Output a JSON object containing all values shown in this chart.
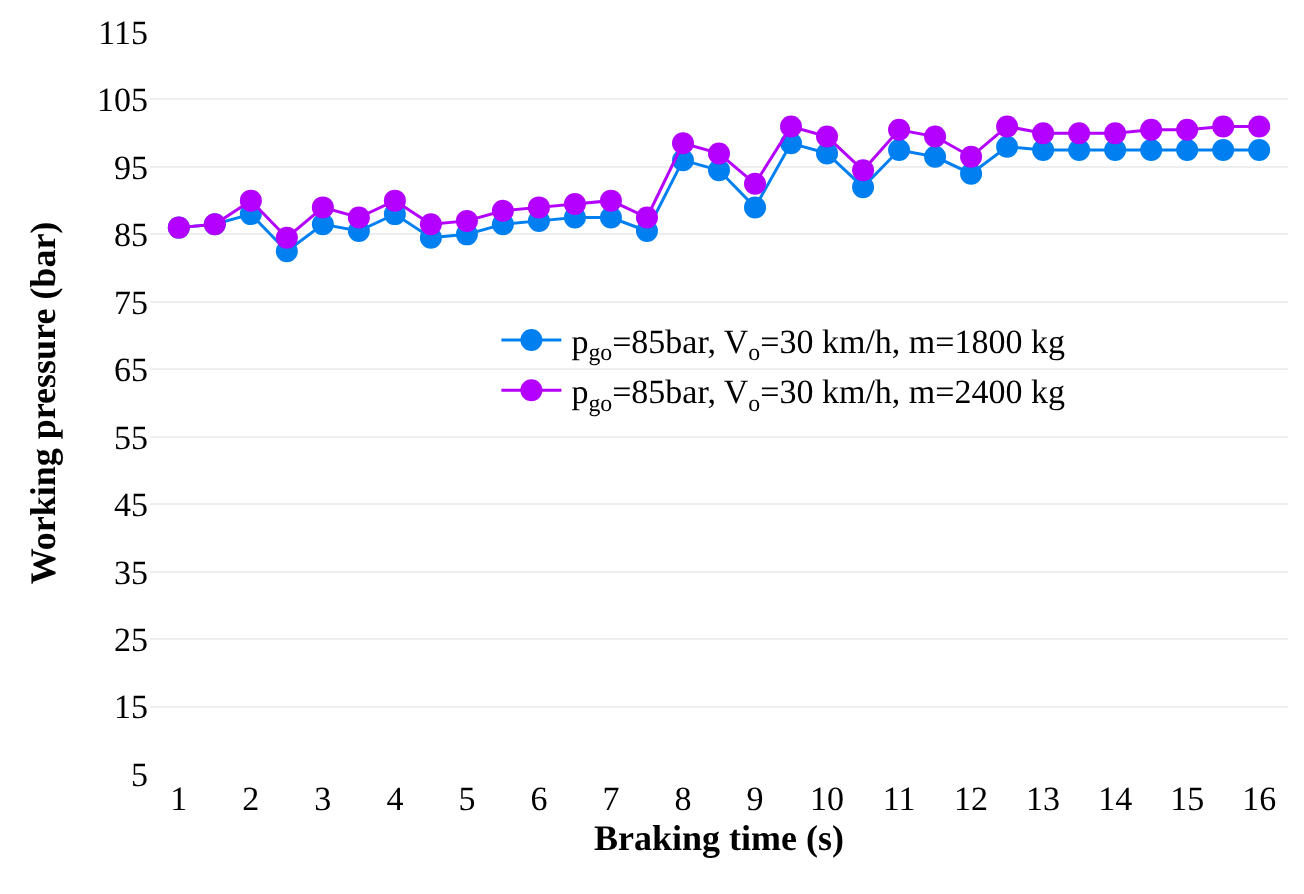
{
  "chart_data": {
    "type": "line",
    "xlabel": "Braking time (s)",
    "ylabel": "Working pressure (bar)",
    "x": [
      1,
      1.5,
      2,
      2.5,
      3,
      3.5,
      4,
      4.5,
      5,
      5.5,
      6,
      6.5,
      7,
      7.5,
      8,
      8.5,
      9,
      9.5,
      10,
      10.5,
      11,
      11.5,
      12,
      12.5,
      13,
      13.5,
      14,
      14.5,
      15,
      15.5,
      16
    ],
    "series": [
      {
        "name": "p$_{go}$=85bar, V$_{o}$=30 km/h, m=1800 kg",
        "color": "#0080f0",
        "values": [
          86,
          86.5,
          88,
          82.5,
          86.5,
          85.5,
          88,
          84.5,
          85,
          86.5,
          87,
          87.5,
          87.5,
          85.5,
          96,
          94.5,
          89,
          98.5,
          97,
          92,
          97.5,
          96.5,
          94,
          98,
          97.5,
          97.5,
          97.5,
          97.5,
          97.5,
          97.5,
          97.5
        ]
      },
      {
        "name": "p$_{go}$=85bar, V$_{o}$=30 km/h, m=2400 kg",
        "color": "#b300ff",
        "values": [
          86,
          86.5,
          90,
          84.5,
          89,
          87.5,
          90,
          86.5,
          87,
          88.5,
          89,
          89.5,
          90,
          87.5,
          98.5,
          97,
          92.5,
          101,
          99.5,
          94.5,
          100.5,
          99.5,
          96.5,
          101,
          100,
          100,
          100,
          100.5,
          100.5,
          101,
          101
        ]
      }
    ],
    "xlim": [
      0.6,
      16.4
    ],
    "xticks": [
      1,
      2,
      3,
      4,
      5,
      6,
      7,
      8,
      9,
      10,
      11,
      12,
      13,
      14,
      15,
      16
    ],
    "ylim": [
      5,
      115
    ],
    "yticks": [
      5,
      15,
      25,
      35,
      45,
      55,
      65,
      75,
      85,
      95,
      105,
      115
    ],
    "grid": "y",
    "legend": "center",
    "marker": "circle",
    "line_style": "solid"
  }
}
